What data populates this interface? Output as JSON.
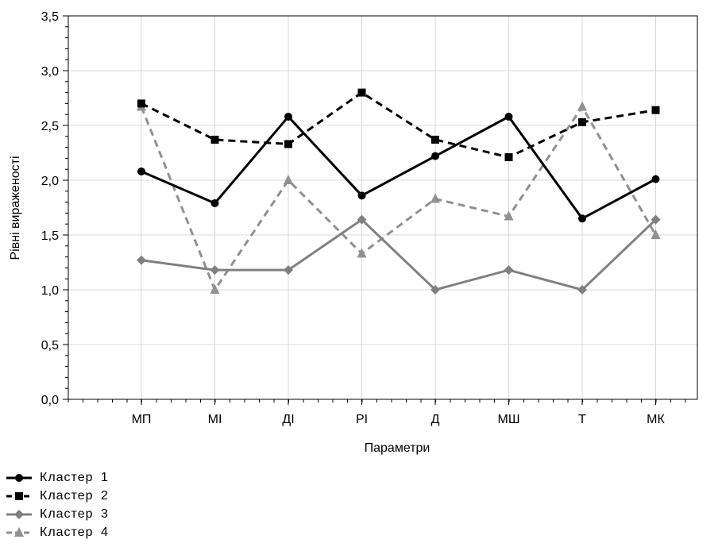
{
  "chart_data": {
    "type": "line",
    "xlabel": "Параметри",
    "ylabel": "Рівні вираженості",
    "categories": [
      "МП",
      "МІ",
      "ДІ",
      "РІ",
      "Д",
      "МШ",
      "Т",
      "МК"
    ],
    "ylim": [
      0,
      3.5
    ],
    "yticks": [
      "0,0",
      "0,5",
      "1,0",
      "1,5",
      "2,0",
      "2,5",
      "3,0",
      "3,5"
    ],
    "grid": true,
    "legend_position": "bottom-left",
    "series": [
      {
        "name": "Кластер  1",
        "values": [
          2.08,
          1.79,
          2.58,
          1.86,
          2.22,
          2.58,
          1.65,
          2.01
        ],
        "color": "#000000",
        "dash": "solid",
        "marker": "circle"
      },
      {
        "name": "Кластер  2",
        "values": [
          2.7,
          2.37,
          2.33,
          2.8,
          2.37,
          2.21,
          2.53,
          2.64
        ],
        "color": "#000000",
        "dash": "dashed",
        "marker": "square"
      },
      {
        "name": "Кластер  3",
        "values": [
          1.27,
          1.18,
          1.18,
          1.64,
          1.0,
          1.18,
          1.0,
          1.64
        ],
        "color": "#808080",
        "dash": "solid",
        "marker": "diamond"
      },
      {
        "name": "Кластер  4",
        "values": [
          2.67,
          1.0,
          2.0,
          1.33,
          1.83,
          1.67,
          2.67,
          1.5
        ],
        "color": "#909090",
        "dash": "dashed",
        "marker": "triangle"
      }
    ]
  }
}
